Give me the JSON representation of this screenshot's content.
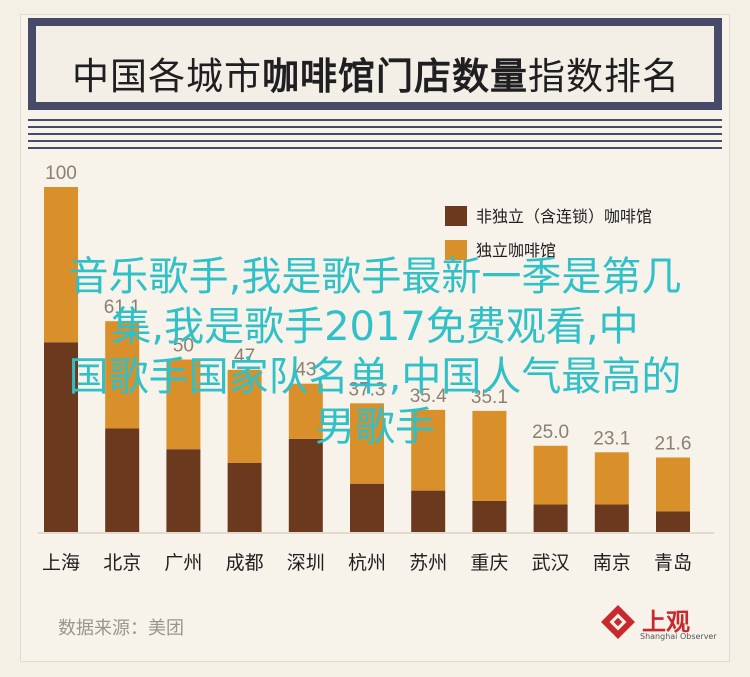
{
  "title": {
    "part1": "中国各城市",
    "part2": "咖啡馆门店数量",
    "part3": "指数排名"
  },
  "overlay": {
    "line1": "音乐歌手,我是歌手最新一季是第几",
    "line2": "集,我是歌手2017免费观看,中",
    "line3": "国歌手国家队名单,中国人气最高的",
    "line4": "男歌手"
  },
  "source": "数据来源：美团",
  "logo": {
    "name": "上观",
    "sub": "Shanghai Observer",
    "icon": "shanghai-observer-logo-icon"
  },
  "colors": {
    "non_independent": "#6b3a1e",
    "independent": "#d9902a",
    "frame": "#474b67"
  },
  "chart_data": {
    "type": "bar",
    "stacked": true,
    "categories": [
      "上海",
      "北京",
      "广州",
      "成都",
      "深圳",
      "杭州",
      "苏州",
      "重庆",
      "武汉",
      "南京",
      "青岛"
    ],
    "totals": [
      100,
      61.1,
      50,
      47,
      43,
      37.3,
      35.4,
      35.1,
      25.0,
      23.1,
      21.6
    ],
    "total_labels": [
      "100",
      "61.1",
      "50",
      "47",
      "43",
      "37.3",
      "35.4",
      "35.1",
      "25.0",
      "23.1",
      "21.6"
    ],
    "series": [
      {
        "name": "非独立（含连锁）咖啡馆",
        "values": [
          55,
          30,
          24,
          20,
          27,
          14,
          12,
          9,
          8,
          8,
          6
        ]
      },
      {
        "name": "独立咖啡馆",
        "values": [
          45,
          31.1,
          26,
          27,
          16,
          23.3,
          23.4,
          26.1,
          17,
          15.1,
          15.6
        ]
      }
    ],
    "ylim": [
      0,
      100
    ],
    "legend_position": "top-right",
    "grid": false
  }
}
